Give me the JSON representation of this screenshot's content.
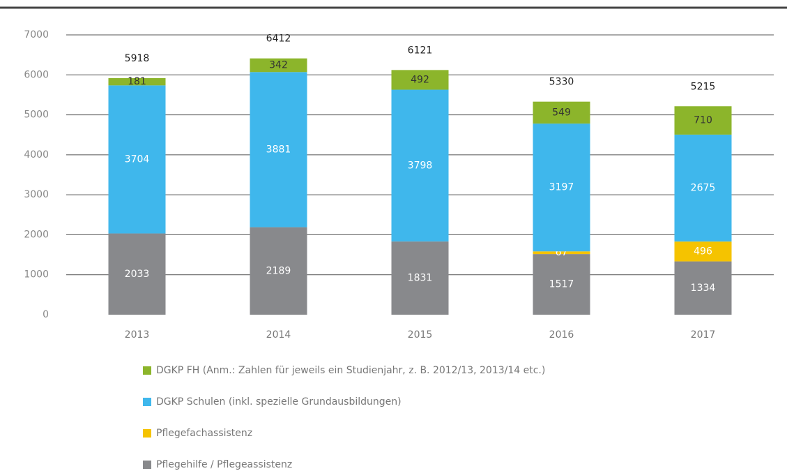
{
  "chart_data": {
    "type": "stacked-bar",
    "categories": [
      "2013",
      "2014",
      "2015",
      "2016",
      "2017"
    ],
    "series": [
      {
        "name": "Pflegehilfe / Pflegeassistenz",
        "color": "#88898c",
        "values": [
          2033,
          2189,
          1831,
          1517,
          1334
        ]
      },
      {
        "name": "Pflegefachassistenz",
        "color": "#f5c300",
        "values": [
          null,
          null,
          null,
          67,
          496
        ]
      },
      {
        "name": "DGKP Schulen (inkl. spezielle Grundausbildungen)",
        "color": "#3fb7ec",
        "values": [
          3704,
          3881,
          3798,
          3197,
          2675
        ]
      },
      {
        "name": "DGKP FH (Anm.: Zahlen für jeweils ein Studienjahr, z. B. 2012/13, 2013/14 etc.)",
        "color": "#8cb52b",
        "values": [
          181,
          342,
          492,
          549,
          710
        ]
      }
    ],
    "totals": [
      5918,
      6412,
      6121,
      5330,
      5215
    ],
    "ylim": [
      0,
      7000
    ],
    "yticks": [
      0,
      1000,
      2000,
      3000,
      4000,
      5000,
      6000,
      7000
    ],
    "grid": true
  }
}
